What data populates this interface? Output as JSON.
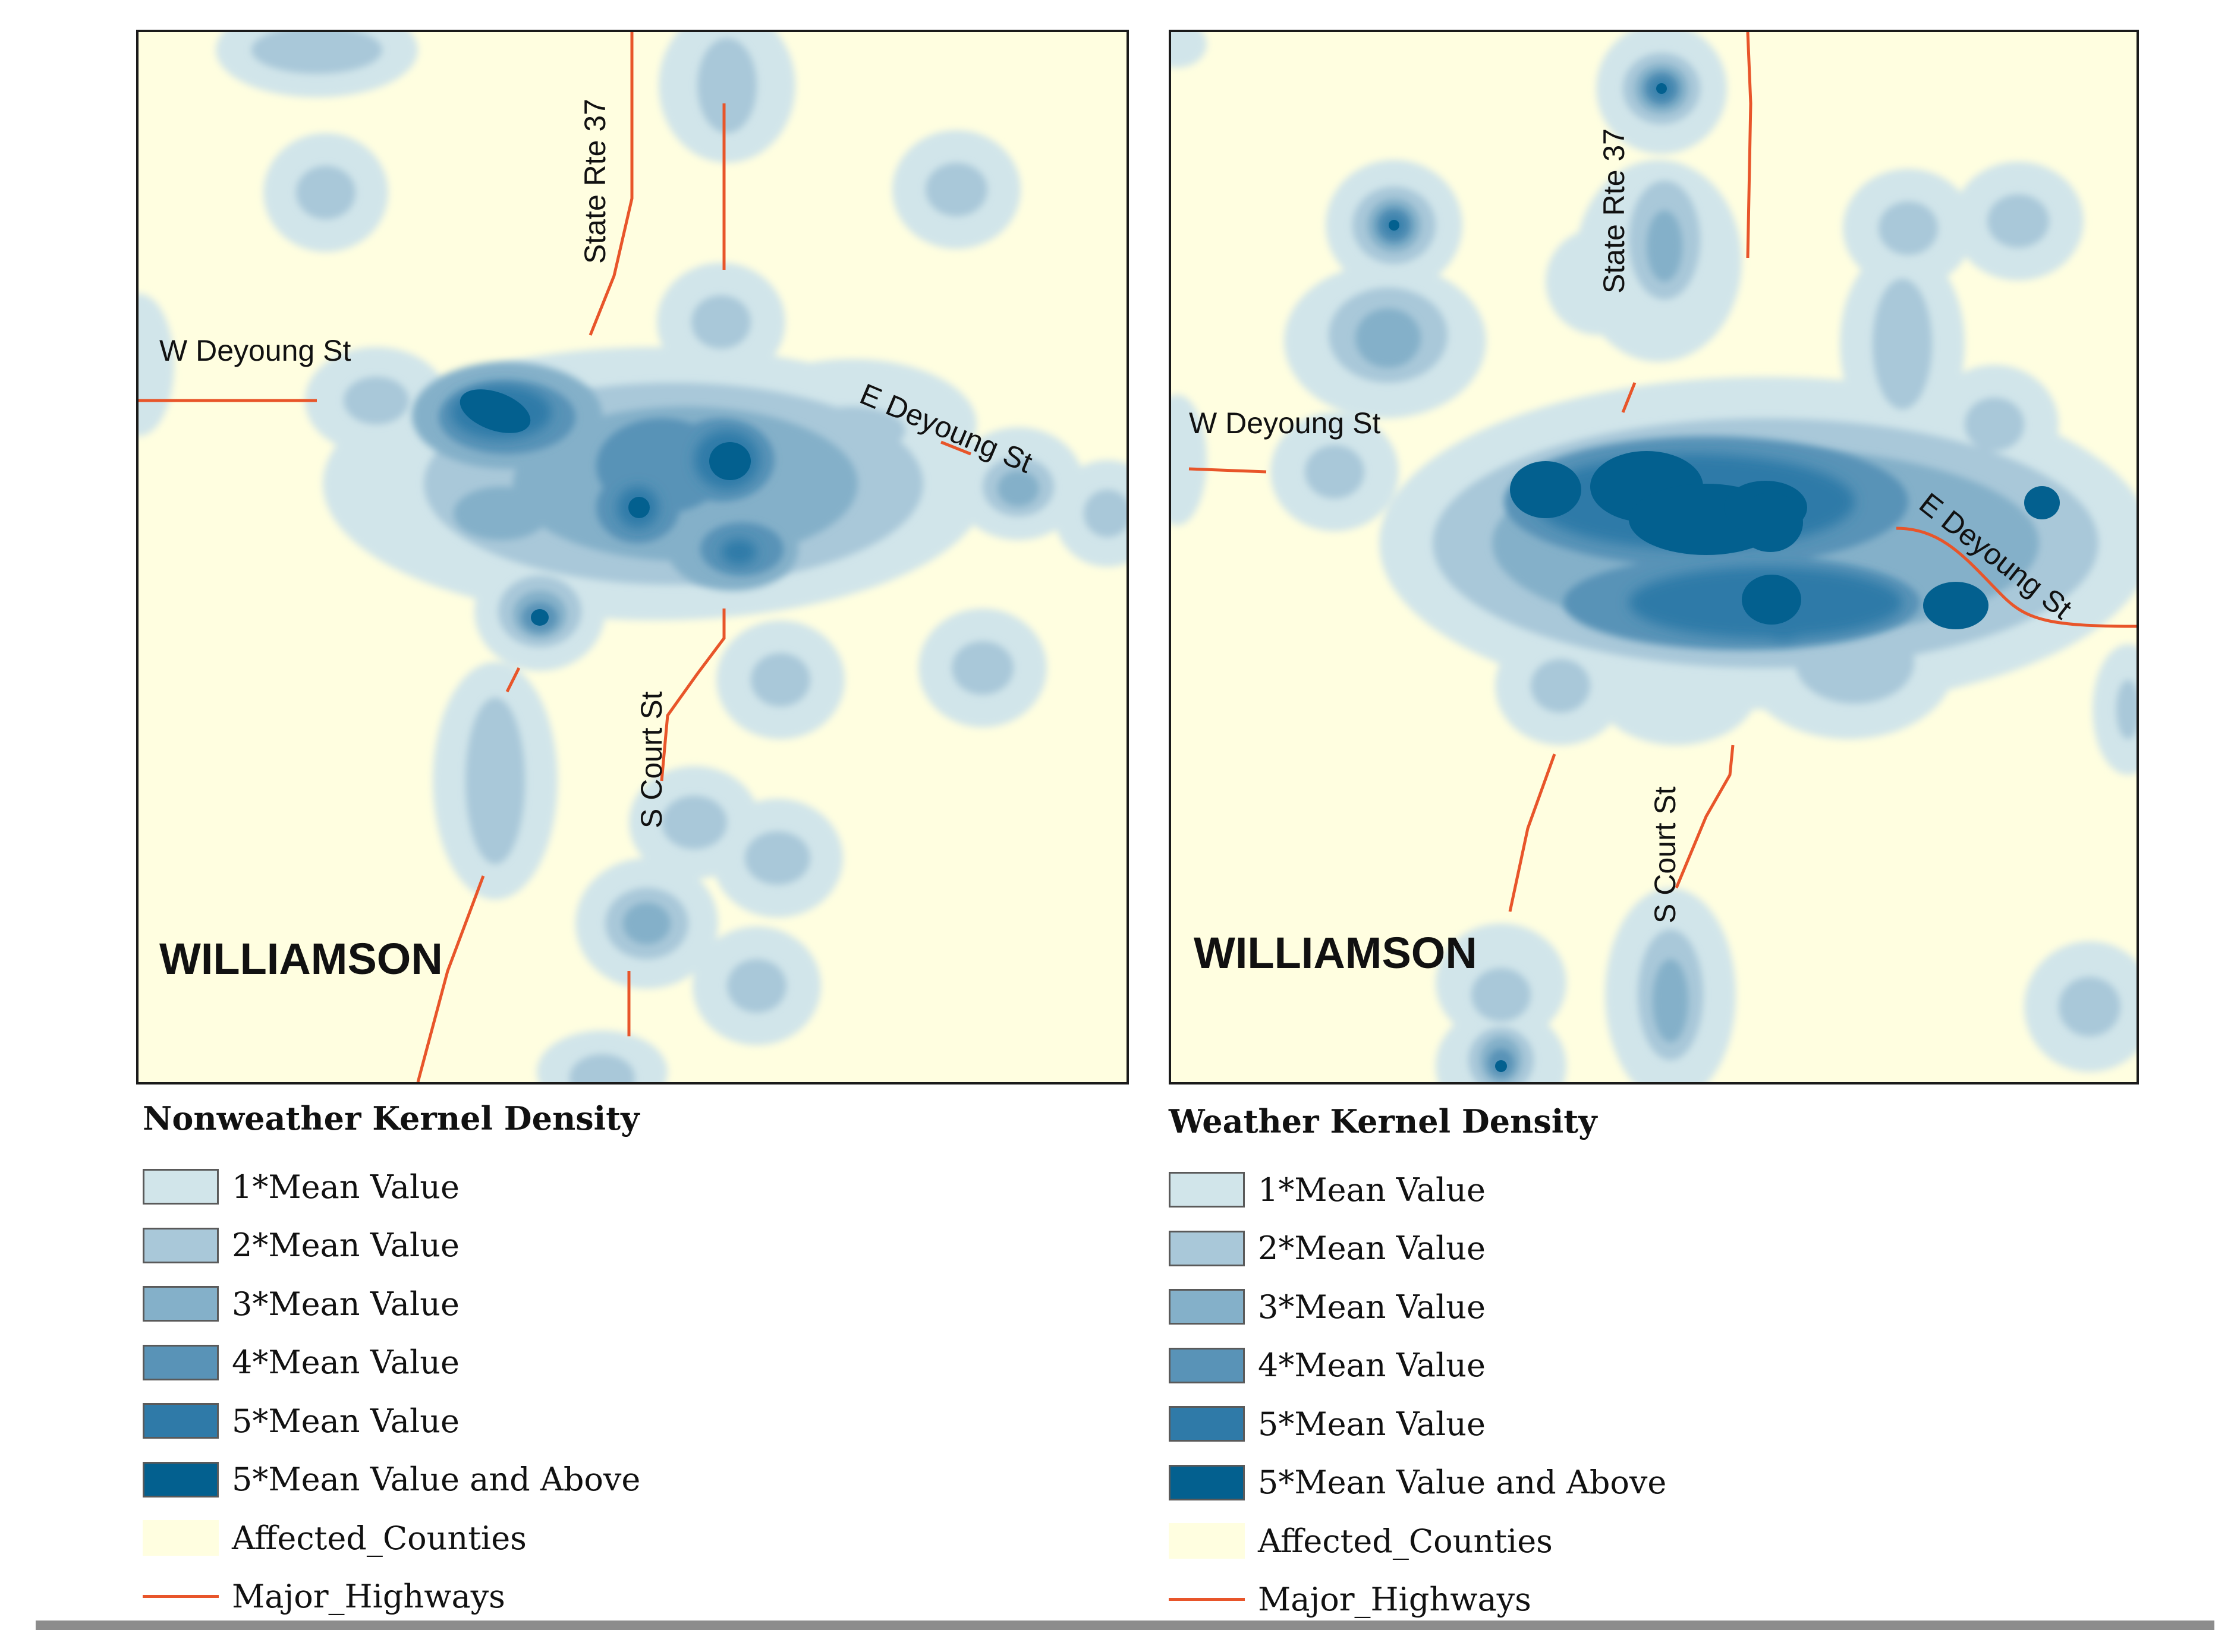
{
  "colors": {
    "county_fill": "#fffee0",
    "highway": "#e8552a",
    "density_classes": [
      "#d1e5ea",
      "#a9c8d9",
      "#84b0c9",
      "#5993b7",
      "#2f7aa8",
      "#03608f"
    ]
  },
  "maps": [
    {
      "id": "nonweather",
      "county_label": "WILLIAMSON",
      "street_labels": {
        "state_rte": "State Rte 37",
        "w_deyoung": "W Deyoung St",
        "e_deyoung": "E Deyoung St",
        "s_court": "S Court St"
      },
      "legend": {
        "title": "Nonweather Kernel Density",
        "items": [
          {
            "label": "1*Mean Value",
            "color": "#d1e5ea"
          },
          {
            "label": "2*Mean Value",
            "color": "#a9c8d9"
          },
          {
            "label": "3*Mean Value",
            "color": "#84b0c9"
          },
          {
            "label": "4*Mean Value",
            "color": "#5993b7"
          },
          {
            "label": "5*Mean Value",
            "color": "#2f7aa8"
          },
          {
            "label": "5*Mean Value and Above",
            "color": "#03608f"
          }
        ],
        "county_label": "Affected_Counties",
        "highway_label": "Major_Highways"
      }
    },
    {
      "id": "weather",
      "county_label": "WILLIAMSON",
      "street_labels": {
        "state_rte": "State Rte 37",
        "w_deyoung": "W Deyoung St",
        "e_deyoung": "E Deyoung St",
        "s_court": "S Court St"
      },
      "legend": {
        "title": "Weather Kernel Density",
        "items": [
          {
            "label": "1*Mean Value",
            "color": "#d1e5ea"
          },
          {
            "label": "2*Mean Value",
            "color": "#a9c8d9"
          },
          {
            "label": "3*Mean Value",
            "color": "#84b0c9"
          },
          {
            "label": "4*Mean Value",
            "color": "#5993b7"
          },
          {
            "label": "5*Mean Value",
            "color": "#2f7aa8"
          },
          {
            "label": "5*Mean Value and Above",
            "color": "#03608f"
          }
        ],
        "county_label": "Affected_Counties",
        "highway_label": "Major_Highways"
      }
    }
  ]
}
